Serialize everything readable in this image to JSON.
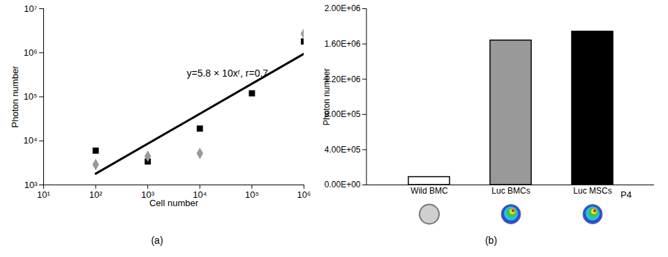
{
  "chart_data": [
    {
      "type": "scatter",
      "log": true,
      "caption": "(a)",
      "xlabel": "Cell number",
      "ylabel": "Photon number",
      "annotation": "y=5.8 × 10xʳ, r=0.7",
      "x": [
        100,
        1000,
        10000,
        100000,
        1000000
      ],
      "series": [
        {
          "color": "#000000",
          "marker": "square",
          "values": [
            6000,
            3400,
            19000,
            120000,
            1800000
          ]
        },
        {
          "color": "#999999",
          "marker": "diamond",
          "values": [
            2900,
            4500,
            5200,
            null,
            2700000
          ]
        },
        {
          "type": "line",
          "color": "#000000",
          "x": [
            100,
            1000000
          ],
          "values": [
            1800,
            950000
          ]
        }
      ],
      "xlim": [
        10,
        1000000
      ],
      "ylim": [
        1000,
        10000000
      ],
      "xticks": [
        {
          "value": 10,
          "label": "10¹"
        },
        {
          "value": 100,
          "label": "10²"
        },
        {
          "value": 1000,
          "label": "10³"
        },
        {
          "value": 10000,
          "label": "10⁴"
        },
        {
          "value": 100000,
          "label": "10⁵"
        },
        {
          "value": 1000000,
          "label": "10⁶"
        }
      ],
      "yticks": [
        {
          "value": 1000,
          "label": "10³"
        },
        {
          "value": 10000,
          "label": "10⁴"
        },
        {
          "value": 100000,
          "label": "10⁵"
        },
        {
          "value": 1000000,
          "label": "10⁶"
        },
        {
          "value": 10000000,
          "label": "10⁷"
        }
      ]
    },
    {
      "type": "bar",
      "caption": "(b)",
      "ylabel": "Photon number",
      "annotation": "P4",
      "categories": [
        "Wild BMC",
        "Luc BMCs",
        "Luc MSCs"
      ],
      "values": [
        90000,
        1640000,
        1740000
      ],
      "colors": [
        "#ffffff",
        "#999999",
        "#000000"
      ],
      "ylim": [
        0,
        2000000
      ],
      "yticks": [
        {
          "value": 0,
          "label": "0.00E+00"
        },
        {
          "value": 400000,
          "label": "4.00E+05"
        },
        {
          "value": 800000,
          "label": "8.00E+05"
        },
        {
          "value": 1200000,
          "label": "1.20E+06"
        },
        {
          "value": 1600000,
          "label": "1.60E+06"
        },
        {
          "value": 2000000,
          "label": "2.00E+06"
        }
      ]
    }
  ]
}
